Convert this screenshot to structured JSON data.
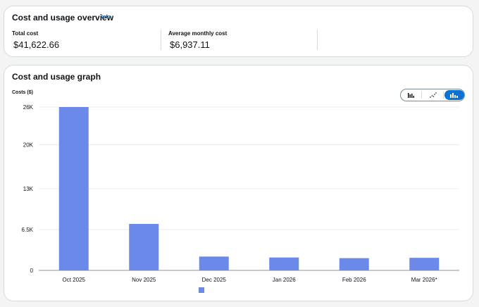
{
  "overview": {
    "title": "Cost and usage overview",
    "info_link": "Info",
    "metrics": [
      {
        "label": "Total cost",
        "value": "$41,622.66"
      },
      {
        "label": "Average monthly cost",
        "value": "$6,937.11"
      }
    ]
  },
  "graph": {
    "title": "Cost and usage graph",
    "chart_type_options": [
      {
        "icon": "bar-chart-icon",
        "active": false
      },
      {
        "icon": "scatter-chart-icon",
        "active": false
      },
      {
        "icon": "stacked-bar-chart-icon",
        "active": true
      }
    ]
  },
  "colors": {
    "bar": "#6b89e8",
    "accent": "#0972d3",
    "grid": "#e9ebed"
  },
  "chart_data": {
    "type": "bar",
    "ylabel": "Costs ($)",
    "categories": [
      "Oct 2025",
      "Nov 2025",
      "Dec 2025",
      "Jan 2026",
      "Feb 2026",
      "Mar 2026*"
    ],
    "values": [
      26000,
      7400,
      2200,
      2050,
      1950,
      2000
    ],
    "yticks": [
      0,
      6500,
      13000,
      20000,
      26000
    ],
    "ytick_labels": [
      "0",
      "6.5K",
      "13K",
      "20K",
      "26K"
    ],
    "ylim": [
      0,
      26000
    ],
    "grid": true,
    "legend": "bottom-center"
  }
}
